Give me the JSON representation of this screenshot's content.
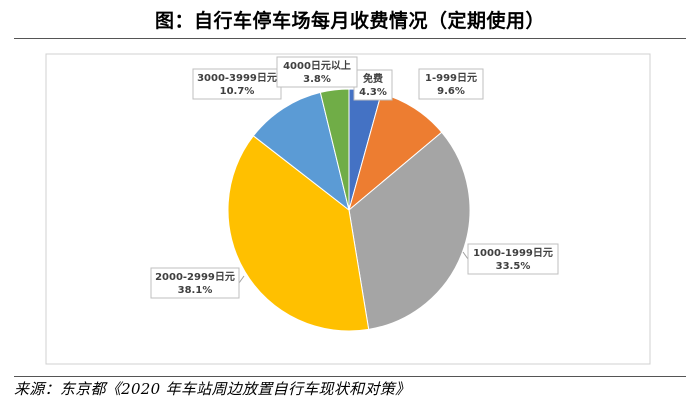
{
  "title": "图：自行车停车场每月收费情况（定期使用）",
  "source": "来源：东京都《2020 年车站周边放置自行车现状和对策》",
  "chart_data": {
    "type": "pie",
    "title": "图：自行车停车场每月收费情况（定期使用）",
    "legend": "none",
    "slices": [
      {
        "label": "免费",
        "value": 4.3,
        "display": "4.3%",
        "color": "#4472C4"
      },
      {
        "label": "1-999日元",
        "value": 9.6,
        "display": "9.6%",
        "color": "#ED7D31"
      },
      {
        "label": "1000-1999日元",
        "value": 33.5,
        "display": "33.5%",
        "color": "#A5A5A5"
      },
      {
        "label": "2000-2999日元",
        "value": 38.1,
        "display": "38.1%",
        "color": "#FFC000"
      },
      {
        "label": "3000-3999日元",
        "value": 10.7,
        "display": "10.7%",
        "color": "#5B9BD5"
      },
      {
        "label": "4000日元以上",
        "value": 3.8,
        "display": "3.8%",
        "color": "#70AD47"
      }
    ]
  }
}
